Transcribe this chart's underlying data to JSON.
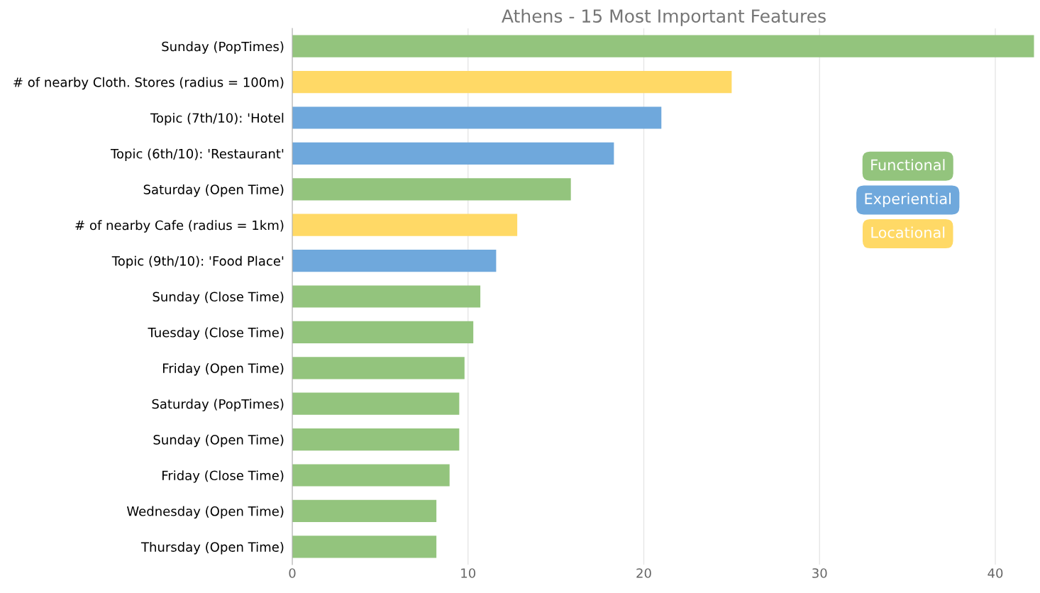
{
  "chart_data": {
    "type": "bar",
    "orientation": "horizontal",
    "title": "Athens - 15 Most Important Features",
    "categories": [
      "Sunday (PopTimes)",
      "# of nearby Cloth. Stores (radius = 100m)",
      "Topic (7th/10): 'Hotel",
      "Topic (6th/10): 'Restaurant'",
      "Saturday (Open Time)",
      "# of nearby Cafe (radius = 1km)",
      "Topic (9th/10): 'Food Place'",
      "Sunday (Close Time)",
      "Tuesday (Close Time)",
      "Friday (Open Time)",
      "Saturday (PopTimes)",
      "Sunday (Open Time)",
      "Friday (Close Time)",
      "Wednesday (Open Time)",
      "Thursday (Open Time)"
    ],
    "series": [
      {
        "name": "Functional",
        "color": "#93c47d",
        "values": [
          42.2,
          null,
          null,
          null,
          15.85,
          null,
          null,
          10.7,
          10.3,
          9.8,
          9.5,
          9.5,
          8.95,
          8.2,
          8.2
        ]
      },
      {
        "name": "Experiential",
        "color": "#6fa8dc",
        "values": [
          null,
          null,
          21.0,
          18.3,
          null,
          null,
          11.6,
          null,
          null,
          null,
          null,
          null,
          null,
          null,
          null
        ]
      },
      {
        "name": "Locational",
        "color": "#ffd966",
        "values": [
          null,
          25.0,
          null,
          null,
          null,
          12.8,
          null,
          null,
          null,
          null,
          null,
          null,
          null,
          null,
          null
        ]
      }
    ],
    "xlim": [
      0,
      42.3
    ],
    "xticks": [
      0,
      10,
      20,
      30,
      40
    ],
    "grid": "x",
    "legend": "right"
  }
}
